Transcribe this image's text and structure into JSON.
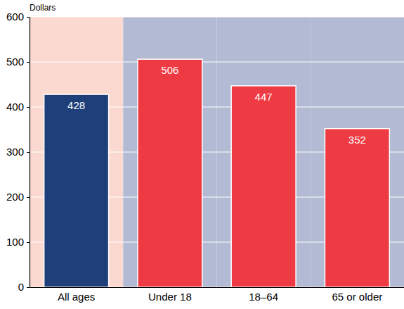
{
  "chart_data": {
    "type": "bar",
    "y_label": "Dollars",
    "categories": [
      "All ages",
      "Under 18",
      "18–64",
      "65 or older"
    ],
    "values": [
      428,
      506,
      447,
      352
    ],
    "colors": [
      "#1f3f7a",
      "#ee3a43",
      "#ee3a43",
      "#ee3a43"
    ],
    "ylim": [
      0,
      600
    ],
    "yticks": [
      0,
      100,
      200,
      300,
      400,
      500,
      600
    ],
    "grid": true,
    "data_labels": true
  }
}
